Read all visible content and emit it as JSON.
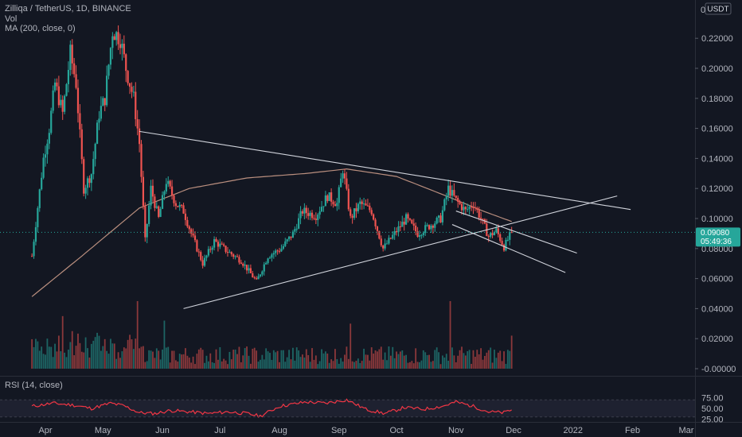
{
  "legend": {
    "symbol": "Zilliqa / TetherUS, 1D, BINANCE",
    "volume": "Vol",
    "ma": "MA (200, close, 0)",
    "rsi": "RSI (14, close)"
  },
  "currency_badge": "USDT",
  "price_tag": {
    "price": "0.09080",
    "countdown": "05:49:36"
  },
  "colors": {
    "background": "#131722",
    "up": "#26a69a",
    "down": "#ef5350",
    "ma": "#d8a48f",
    "rsi": "#f23645",
    "lines": "#d1d4dc",
    "price_tag": "#26a69a",
    "rsi_band": "#1e2130"
  },
  "chart_data": {
    "type": "candlestick",
    "price_axis": {
      "ticks": [
        "0.22000",
        "0.20000",
        "0.18000",
        "0.16000",
        "0.14000",
        "0.12000",
        "0.10000",
        "0.08000",
        "0.06000",
        "0.04000",
        "0.02000",
        "-0.00000"
      ],
      "top_label": "0"
    },
    "rsi_axis": {
      "ticks": [
        "75.00",
        "50.00",
        "25.00"
      ],
      "band": [
        30,
        70
      ]
    },
    "time_axis": {
      "labels": [
        "Apr",
        "May",
        "Jun",
        "Jul",
        "Aug",
        "Sep",
        "Oct",
        "Nov",
        "Dec",
        "2022",
        "Feb",
        "Mar"
      ]
    },
    "price_anchors": [
      [
        "2021-03-25",
        0.075
      ],
      [
        "2021-03-31",
        0.14
      ],
      [
        "2021-04-03",
        0.16
      ],
      [
        "2021-04-06",
        0.19
      ],
      [
        "2021-04-10",
        0.17
      ],
      [
        "2021-04-14",
        0.21
      ],
      [
        "2021-04-17",
        0.19
      ],
      [
        "2021-04-21",
        0.12
      ],
      [
        "2021-04-25",
        0.13
      ],
      [
        "2021-04-29",
        0.17
      ],
      [
        "2021-05-02",
        0.18
      ],
      [
        "2021-05-06",
        0.225
      ],
      [
        "2021-05-10",
        0.22
      ],
      [
        "2021-05-13",
        0.2
      ],
      [
        "2021-05-17",
        0.18
      ],
      [
        "2021-05-20",
        0.15
      ],
      [
        "2021-05-23",
        0.085
      ],
      [
        "2021-05-26",
        0.12
      ],
      [
        "2021-05-30",
        0.1
      ],
      [
        "2021-06-03",
        0.125
      ],
      [
        "2021-06-08",
        0.11
      ],
      [
        "2021-06-12",
        0.105
      ],
      [
        "2021-06-16",
        0.09
      ],
      [
        "2021-06-22",
        0.07
      ],
      [
        "2021-06-28",
        0.085
      ],
      [
        "2021-07-05",
        0.078
      ],
      [
        "2021-07-12",
        0.072
      ],
      [
        "2021-07-20",
        0.058
      ],
      [
        "2021-07-26",
        0.075
      ],
      [
        "2021-08-02",
        0.08
      ],
      [
        "2021-08-08",
        0.09
      ],
      [
        "2021-08-13",
        0.105
      ],
      [
        "2021-08-20",
        0.102
      ],
      [
        "2021-08-26",
        0.115
      ],
      [
        "2021-08-31",
        0.11
      ],
      [
        "2021-09-03",
        0.133
      ],
      [
        "2021-09-07",
        0.1
      ],
      [
        "2021-09-12",
        0.11
      ],
      [
        "2021-09-18",
        0.105
      ],
      [
        "2021-09-24",
        0.08
      ],
      [
        "2021-09-30",
        0.09
      ],
      [
        "2021-10-06",
        0.1
      ],
      [
        "2021-10-12",
        0.09
      ],
      [
        "2021-10-18",
        0.095
      ],
      [
        "2021-10-24",
        0.1
      ],
      [
        "2021-10-28",
        0.12
      ],
      [
        "2021-11-01",
        0.112
      ],
      [
        "2021-11-06",
        0.105
      ],
      [
        "2021-11-10",
        0.11
      ],
      [
        "2021-11-14",
        0.1
      ],
      [
        "2021-11-18",
        0.088
      ],
      [
        "2021-11-22",
        0.092
      ],
      [
        "2021-11-26",
        0.081
      ],
      [
        "2021-11-30",
        0.0908
      ]
    ],
    "ma200_anchors": [
      [
        "2021-03-25",
        0.048
      ],
      [
        "2021-04-20",
        0.075
      ],
      [
        "2021-05-20",
        0.107
      ],
      [
        "2021-06-15",
        0.12
      ],
      [
        "2021-07-15",
        0.127
      ],
      [
        "2021-08-15",
        0.13
      ],
      [
        "2021-09-05",
        0.133
      ],
      [
        "2021-10-01",
        0.128
      ],
      [
        "2021-10-25",
        0.116
      ],
      [
        "2021-11-15",
        0.105
      ],
      [
        "2021-11-30",
        0.098
      ]
    ],
    "rsi_anchors": [
      [
        "2021-03-25",
        55
      ],
      [
        "2021-04-05",
        62
      ],
      [
        "2021-04-15",
        58
      ],
      [
        "2021-04-25",
        50
      ],
      [
        "2021-05-05",
        62
      ],
      [
        "2021-05-12",
        56
      ],
      [
        "2021-05-20",
        40
      ],
      [
        "2021-05-28",
        38
      ],
      [
        "2021-06-05",
        45
      ],
      [
        "2021-06-15",
        42
      ],
      [
        "2021-06-25",
        38
      ],
      [
        "2021-07-05",
        42
      ],
      [
        "2021-07-15",
        38
      ],
      [
        "2021-07-22",
        32
      ],
      [
        "2021-08-01",
        55
      ],
      [
        "2021-08-15",
        65
      ],
      [
        "2021-08-25",
        62
      ],
      [
        "2021-09-05",
        70
      ],
      [
        "2021-09-15",
        48
      ],
      [
        "2021-09-25",
        38
      ],
      [
        "2021-10-05",
        52
      ],
      [
        "2021-10-15",
        48
      ],
      [
        "2021-10-25",
        55
      ],
      [
        "2021-11-01",
        65
      ],
      [
        "2021-11-10",
        55
      ],
      [
        "2021-11-18",
        42
      ],
      [
        "2021-11-26",
        40
      ],
      [
        "2021-11-30",
        47
      ]
    ],
    "volume_spikes": [
      [
        "2021-04-10",
        0.035
      ],
      [
        "2021-05-19",
        0.045
      ],
      [
        "2021-06-02",
        0.032
      ],
      [
        "2021-09-07",
        0.03
      ],
      [
        "2021-10-29",
        0.045
      ],
      [
        "2021-11-30",
        0.022
      ]
    ],
    "trendlines": [
      {
        "name": "descending-resistance",
        "from": [
          "2021-05-20",
          0.158
        ],
        "to": [
          "2022-01-31",
          0.106
        ]
      },
      {
        "name": "ascending-support",
        "from": [
          "2021-06-12",
          0.04
        ],
        "to": [
          "2022-01-24",
          0.115
        ]
      },
      {
        "name": "channel-upper",
        "from": [
          "2021-11-01",
          0.105
        ],
        "to": [
          "2022-01-03",
          0.077
        ]
      },
      {
        "name": "channel-lower",
        "from": [
          "2021-10-30",
          0.096
        ],
        "to": [
          "2021-12-28",
          0.064
        ]
      }
    ]
  }
}
